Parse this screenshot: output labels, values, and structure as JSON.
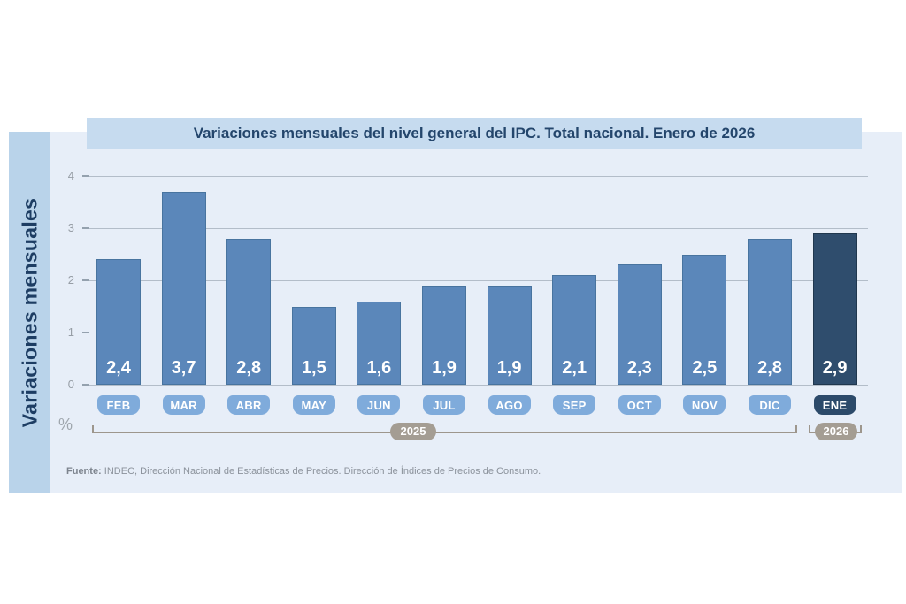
{
  "source": {
    "label": "Fuente:",
    "text": " INDEC, Dirección Nacional de Estadísticas de Precios. Dirección de Índices de Precios de Consumo."
  },
  "colors": {
    "bar": "#5b87ba",
    "bar_border": "#48749f",
    "bar_highlight": "#2f4d6d",
    "bar_highlight_border": "#20374e",
    "month_pill": "#7fabdb",
    "month_pill_highlight": "#2c4a6a",
    "year_pill": "#a49d93",
    "banner_bg": "#c6dbef",
    "panel_bg": "#e7eef8",
    "side_band_bg": "#b9d3ea",
    "title_text": "#24466c",
    "value_text": "#ffffff",
    "grid": "#b3bdc9"
  },
  "chart_data": {
    "type": "bar",
    "title": "Variaciones mensuales del nivel general del IPC. Total nacional. Enero de 2026",
    "ylabel": "Variaciones mensuales",
    "unit": "%",
    "ylim": [
      0,
      4
    ],
    "yticks": [
      0,
      1,
      2,
      3,
      4
    ],
    "grid": true,
    "legend": "none",
    "categories": [
      "FEB",
      "MAR",
      "ABR",
      "MAY",
      "JUN",
      "JUL",
      "AGO",
      "SEP",
      "OCT",
      "NOV",
      "DIC",
      "ENE"
    ],
    "values": [
      2.4,
      3.7,
      2.8,
      1.5,
      1.6,
      1.9,
      1.9,
      2.1,
      2.3,
      2.5,
      2.8,
      2.9
    ],
    "value_labels": [
      "2,4",
      "3,7",
      "2,8",
      "1,5",
      "1,6",
      "1,9",
      "1,9",
      "2,1",
      "2,3",
      "2,5",
      "2,8",
      "2,9"
    ],
    "highlight_index": 11,
    "year_groups": [
      {
        "label": "2025",
        "start_index": 0,
        "end_index": 10
      },
      {
        "label": "2026",
        "start_index": 11,
        "end_index": 11
      }
    ]
  }
}
